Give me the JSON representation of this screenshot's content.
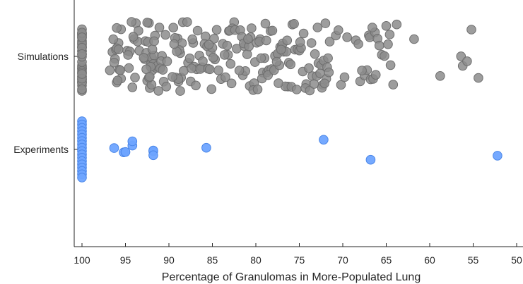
{
  "chart_data": {
    "type": "scatter",
    "title": "",
    "xlabel": "Percentage of Granulomas in More-Populated Lung",
    "ylabel": "",
    "xlim": [
      100,
      50
    ],
    "x_reversed": true,
    "x_ticks": [
      100,
      95,
      90,
      85,
      80,
      75,
      70,
      65,
      60,
      55,
      50
    ],
    "categories": [
      "Simulations",
      "Experiments"
    ],
    "grid": false,
    "legend": "none",
    "series": [
      {
        "category": "Simulations",
        "color": "#8c8c8c",
        "edge_color": "#6e6e6e",
        "values": [
          100,
          100,
          100,
          100,
          100,
          100,
          100,
          100,
          100,
          100,
          100,
          100,
          100,
          100,
          100,
          100,
          100,
          100,
          100,
          100,
          100,
          100,
          100,
          100,
          100,
          100,
          100,
          100,
          100,
          100,
          100,
          100,
          100,
          100,
          100,
          100,
          100,
          100,
          100,
          100,
          96.5,
          96,
          95.5,
          95.8,
          96.2,
          95.9,
          96.8,
          95.5,
          96.3,
          96,
          95.7,
          96.1,
          95.6,
          96.4,
          96,
          95.8,
          94.8,
          94.2,
          94.5,
          93.8,
          94,
          93.5,
          94.6,
          94.3,
          93.6,
          92.7,
          93.4,
          94.1,
          93.9,
          94.7,
          92.8,
          92.5,
          92.1,
          91.9,
          92.3,
          91.8,
          92.6,
          92,
          91.5,
          92.4,
          91.7,
          92.2,
          91.6,
          92.9,
          92,
          91.8,
          92.5,
          91.4,
          92.1,
          91.9,
          92.3,
          92.6,
          91.7,
          92.2,
          91.2,
          90.8,
          90.4,
          90.9,
          91,
          90.6,
          90.2,
          90.7,
          91.1,
          90.3,
          89.5,
          89,
          88.7,
          89.2,
          88.5,
          88.9,
          89.3,
          88.6,
          88.8,
          89.1,
          88.4,
          89.4,
          88.3,
          88.9,
          89.6,
          88.7,
          87.8,
          87.5,
          87.2,
          87.9,
          87.3,
          87.6,
          87.1,
          86.8,
          87.4,
          86.5,
          86.2,
          86.9,
          86.4,
          86.7,
          86.1,
          85.8,
          85.5,
          85.2,
          85.9,
          85.3,
          85.6,
          85,
          84.8,
          85.4,
          84.5,
          84.7,
          85.1,
          84.3,
          84.9,
          84,
          83.5,
          83.8,
          83.2,
          83.6,
          83.1,
          82.8,
          83.3,
          82.5,
          82.9,
          82.2,
          82.7,
          83,
          82.4,
          81.8,
          81.5,
          81.2,
          81.9,
          81.3,
          81.6,
          81,
          80.7,
          81.4,
          80.5,
          80.2,
          80.8,
          80.3,
          80.6,
          80.9,
          80.1,
          79.8,
          79.5,
          79.2,
          79.9,
          79.3,
          79.6,
          79,
          78.7,
          79.4,
          78.5,
          78.2,
          78.8,
          78.3,
          78.6,
          78.9,
          78.1,
          77.8,
          77.5,
          77.2,
          77.9,
          77.3,
          77.6,
          77,
          76.8,
          76.5,
          76.2,
          76.9,
          76.3,
          76.6,
          76,
          77.1,
          77.4,
          76.4,
          75.8,
          75.5,
          75.2,
          75.9,
          75.3,
          75.6,
          75,
          74.8,
          74.5,
          74.2,
          74.9,
          74.3,
          74.6,
          73.8,
          73.5,
          73.2,
          73.9,
          73.3,
          73.6,
          73,
          72.8,
          72.5,
          72.2,
          72.9,
          72.3,
          72.6,
          72,
          71.8,
          71.5,
          71.9,
          71.6,
          72.4,
          71.7,
          72.1,
          70.8,
          70.5,
          69.5,
          70.2,
          69.8,
          68.5,
          68.2,
          68,
          67.5,
          67.2,
          67.8,
          67,
          66.8,
          66.5,
          66.2,
          66.9,
          66.3,
          66.6,
          66,
          65.8,
          65.5,
          65.2,
          65,
          64.8,
          64.5,
          64.2,
          64.6,
          63.8,
          61.8,
          58.8,
          56.4,
          56.2,
          55.7,
          55.2,
          54.4
        ]
      },
      {
        "category": "Experiments",
        "color": "#6ea4ff",
        "edge_color": "#4a86e8",
        "values": [
          100,
          100,
          100,
          100,
          100,
          100,
          100,
          100,
          100,
          100,
          100,
          100,
          100,
          100,
          100,
          100,
          100,
          100,
          96.3,
          95.2,
          95,
          94.2,
          94.2,
          91.8,
          91.8,
          91.8,
          85.7,
          72.2,
          66.8,
          52.2
        ]
      }
    ]
  }
}
